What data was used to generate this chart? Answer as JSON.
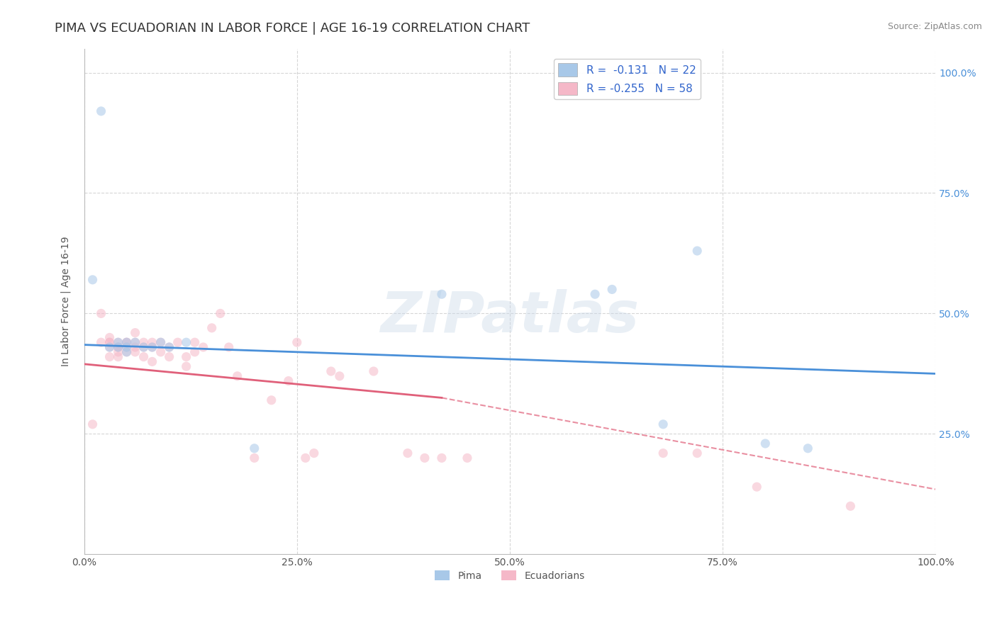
{
  "title": "PIMA VS ECUADORIAN IN LABOR FORCE | AGE 16-19 CORRELATION CHART",
  "source": "Source: ZipAtlas.com",
  "ylabel": "In Labor Force | Age 16-19",
  "xlim": [
    0.0,
    1.0
  ],
  "ylim": [
    0.0,
    1.05
  ],
  "xtick_vals": [
    0.0,
    0.25,
    0.5,
    0.75,
    1.0
  ],
  "xtick_labels": [
    "0.0%",
    "25.0%",
    "50.0%",
    "75.0%",
    "100.0%"
  ],
  "ytick_vals": [
    0.25,
    0.5,
    0.75,
    1.0
  ],
  "ytick_labels": [
    "25.0%",
    "50.0%",
    "75.0%",
    "100.0%"
  ],
  "background_color": "#ffffff",
  "grid_color": "#cccccc",
  "pima_color": "#a8c8e8",
  "ecuadorian_color": "#f5b8c8",
  "pima_line_color": "#4a90d9",
  "ecuadorian_line_color": "#e0607a",
  "pima_R": -0.131,
  "pima_N": 22,
  "ecuadorian_R": -0.255,
  "ecuadorian_N": 58,
  "legend_label_pima": "Pima",
  "legend_label_ecuadorian": "Ecuadorians",
  "pima_scatter_x": [
    0.01,
    0.02,
    0.03,
    0.04,
    0.04,
    0.05,
    0.05,
    0.05,
    0.06,
    0.07,
    0.08,
    0.09,
    0.1,
    0.12,
    0.2,
    0.42,
    0.6,
    0.62,
    0.68,
    0.72,
    0.8,
    0.85
  ],
  "pima_scatter_y": [
    0.57,
    0.92,
    0.43,
    0.44,
    0.43,
    0.44,
    0.43,
    0.42,
    0.44,
    0.43,
    0.43,
    0.44,
    0.43,
    0.44,
    0.22,
    0.54,
    0.54,
    0.55,
    0.27,
    0.63,
    0.23,
    0.22
  ],
  "ecuadorian_scatter_x": [
    0.01,
    0.02,
    0.02,
    0.03,
    0.03,
    0.03,
    0.03,
    0.03,
    0.04,
    0.04,
    0.04,
    0.04,
    0.04,
    0.05,
    0.05,
    0.05,
    0.05,
    0.06,
    0.06,
    0.06,
    0.06,
    0.07,
    0.07,
    0.07,
    0.08,
    0.08,
    0.08,
    0.09,
    0.09,
    0.1,
    0.1,
    0.11,
    0.12,
    0.12,
    0.13,
    0.13,
    0.14,
    0.15,
    0.16,
    0.17,
    0.18,
    0.2,
    0.22,
    0.24,
    0.25,
    0.26,
    0.27,
    0.29,
    0.3,
    0.34,
    0.38,
    0.4,
    0.42,
    0.45,
    0.68,
    0.72,
    0.79,
    0.9
  ],
  "ecuadorian_scatter_y": [
    0.27,
    0.5,
    0.44,
    0.44,
    0.45,
    0.44,
    0.43,
    0.41,
    0.44,
    0.43,
    0.43,
    0.42,
    0.41,
    0.44,
    0.44,
    0.43,
    0.42,
    0.46,
    0.44,
    0.43,
    0.42,
    0.44,
    0.43,
    0.41,
    0.43,
    0.44,
    0.4,
    0.44,
    0.42,
    0.43,
    0.41,
    0.44,
    0.39,
    0.41,
    0.44,
    0.42,
    0.43,
    0.47,
    0.5,
    0.43,
    0.37,
    0.2,
    0.32,
    0.36,
    0.44,
    0.2,
    0.21,
    0.38,
    0.37,
    0.38,
    0.21,
    0.2,
    0.2,
    0.2,
    0.21,
    0.21,
    0.14,
    0.1
  ],
  "title_fontsize": 13,
  "axis_fontsize": 10,
  "source_fontsize": 9,
  "legend_fontsize": 11,
  "marker_size": 90,
  "marker_alpha": 0.55,
  "watermark_text": "ZIPatlas",
  "watermark_color": "#c8d8e8",
  "watermark_fontsize": 58,
  "watermark_alpha": 0.4,
  "pima_line_start_x": 0.0,
  "pima_line_start_y": 0.435,
  "pima_line_end_x": 1.0,
  "pima_line_end_y": 0.375,
  "ecu_line_solid_start_x": 0.0,
  "ecu_line_solid_start_y": 0.395,
  "ecu_line_solid_end_x": 0.42,
  "ecu_line_solid_end_y": 0.325,
  "ecu_line_dash_start_x": 0.42,
  "ecu_line_dash_start_y": 0.325,
  "ecu_line_dash_end_x": 1.0,
  "ecu_line_dash_end_y": 0.135
}
